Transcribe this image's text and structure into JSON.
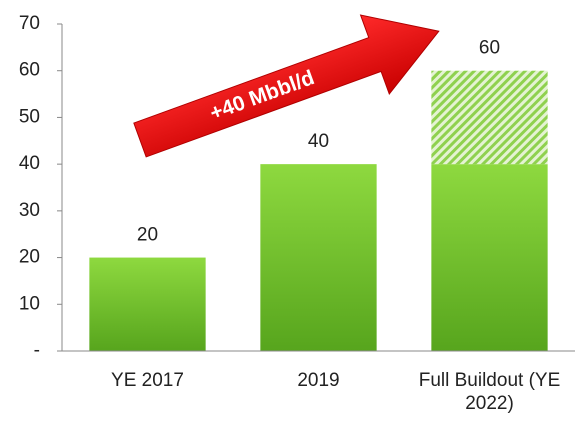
{
  "chart_data": {
    "type": "stacked_bar",
    "categories": [
      "YE 2017",
      "2019",
      "Full Buildout (YE 2022)"
    ],
    "series": [
      {
        "color": "#6cc02a",
        "pattern": "solid",
        "values": [
          20,
          40,
          40
        ]
      },
      {
        "color": "#8fd14f",
        "pattern": "hatch",
        "values": [
          0,
          0,
          20
        ]
      }
    ],
    "data_labels": [
      20,
      40,
      60
    ],
    "annotation": "+40 Mbbl/d",
    "ylim": [
      0,
      70
    ],
    "yticks": [
      {
        "value": 0,
        "label": "-"
      },
      10,
      20,
      30,
      40,
      50,
      60,
      70
    ],
    "grid": false
  }
}
